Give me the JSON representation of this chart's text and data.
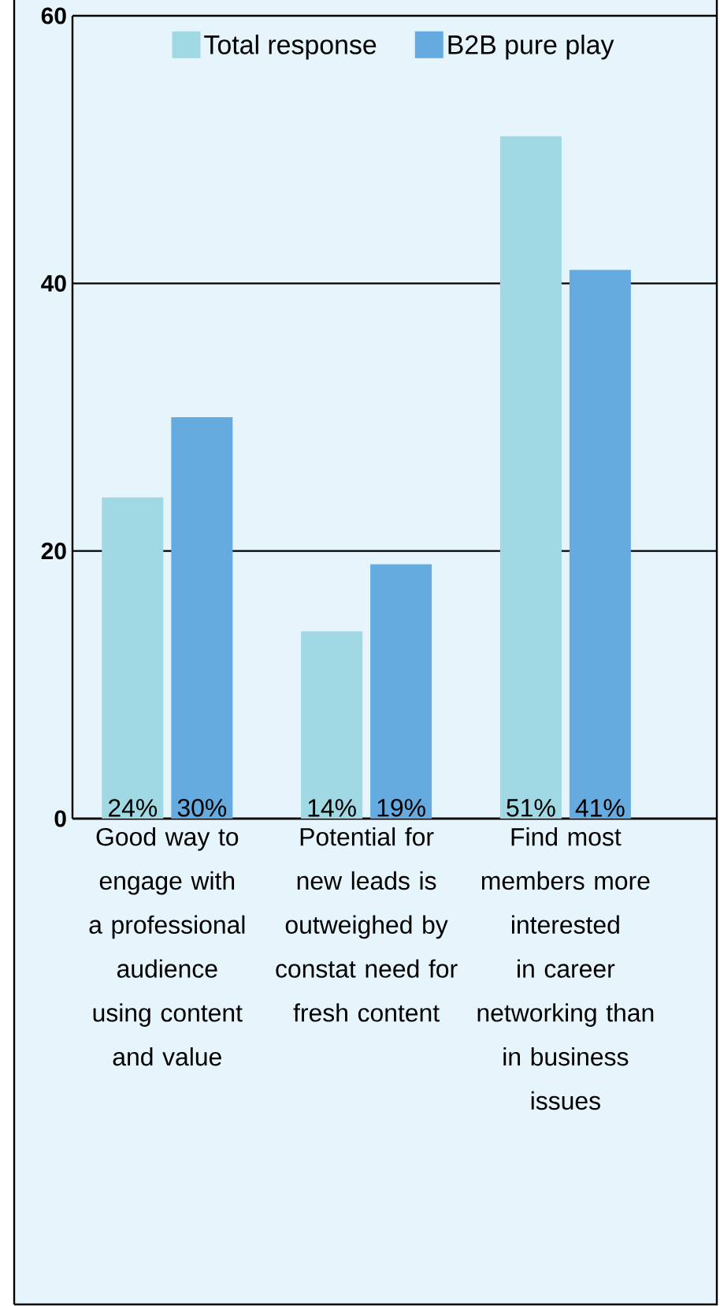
{
  "chart_data": {
    "type": "bar",
    "categories": [
      "Good way to engage with a professional audience using content and value",
      "Potential for new leads is outweighed by constat need for fresh content",
      "Find most members more interested in career networking than in business issues"
    ],
    "series": [
      {
        "name": "Total response",
        "color": "#a0d8e3",
        "values": [
          24,
          14,
          51
        ],
        "value_labels": [
          "24%",
          "14%",
          "51%"
        ]
      },
      {
        "name": "B2B pure play",
        "color": "#66abdf",
        "values": [
          30,
          19,
          41
        ],
        "value_labels": [
          "30%",
          "19%",
          "41%"
        ]
      }
    ],
    "ylim": [
      0,
      60
    ],
    "yticks": [
      0,
      20,
      40,
      60
    ],
    "grid": "y",
    "legend": "top"
  }
}
